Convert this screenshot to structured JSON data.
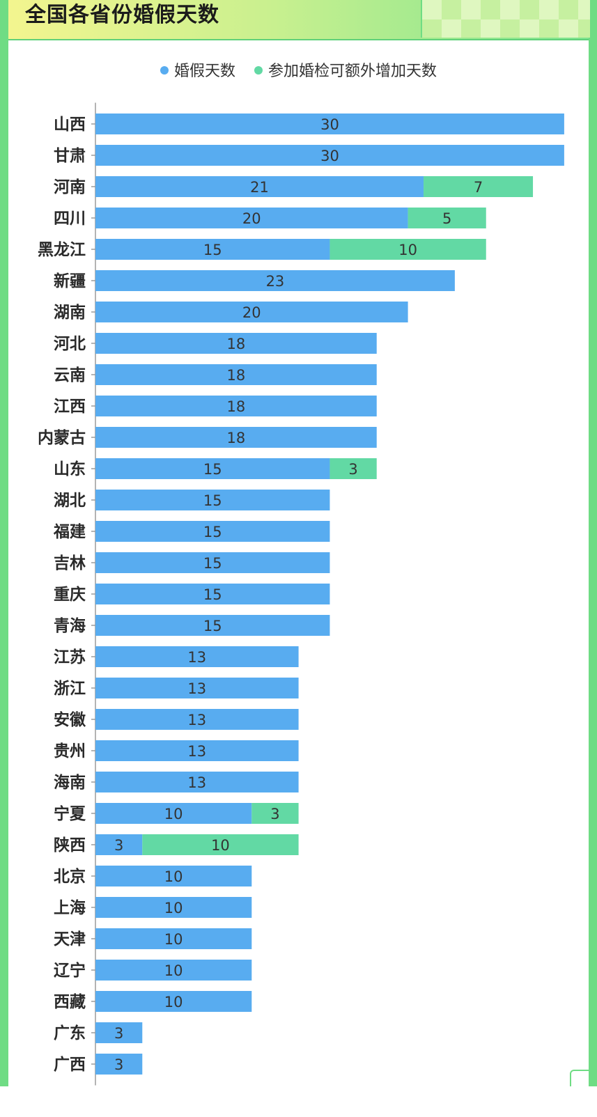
{
  "title": "全国各省份婚假天数",
  "colors": {
    "base": "#58acf0",
    "extra": "#62d9a4",
    "axis": "#9a9a9a",
    "label": "#2a2a2a",
    "value": "#333333"
  },
  "legend": [
    {
      "label": "婚假天数",
      "color": "#58acf0"
    },
    {
      "label": "参加婚检可额外增加天数",
      "color": "#62d9a4"
    }
  ],
  "chart_data": {
    "type": "bar",
    "orientation": "horizontal",
    "stacked": true,
    "title": "全国各省份婚假天数",
    "grid": false,
    "legend_position": "top-center",
    "categories": [
      "山西",
      "甘肃",
      "河南",
      "四川",
      "黑龙江",
      "新疆",
      "湖南",
      "河北",
      "云南",
      "江西",
      "内蒙古",
      "山东",
      "湖北",
      "福建",
      "吉林",
      "重庆",
      "青海",
      "江苏",
      "浙江",
      "安徽",
      "贵州",
      "海南",
      "宁夏",
      "陕西",
      "北京",
      "上海",
      "天津",
      "辽宁",
      "西藏",
      "广东",
      "广西"
    ],
    "series": [
      {
        "name": "婚假天数",
        "values": [
          30,
          30,
          21,
          20,
          15,
          23,
          20,
          18,
          18,
          18,
          18,
          15,
          15,
          15,
          15,
          15,
          15,
          13,
          13,
          13,
          13,
          13,
          10,
          3,
          10,
          10,
          10,
          10,
          10,
          3,
          3
        ]
      },
      {
        "name": "参加婚检可额外增加天数",
        "values": [
          0,
          0,
          7,
          5,
          10,
          0,
          0,
          0,
          0,
          0,
          0,
          3,
          0,
          0,
          0,
          0,
          0,
          0,
          0,
          0,
          0,
          0,
          3,
          10,
          0,
          0,
          0,
          0,
          0,
          0,
          0
        ]
      }
    ],
    "xlim": [
      0,
      30
    ]
  }
}
